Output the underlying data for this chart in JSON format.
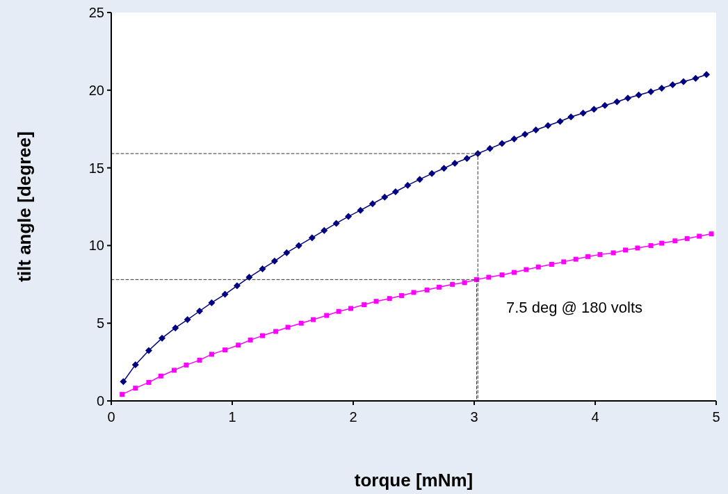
{
  "chart_data": {
    "type": "line",
    "xlabel": "torque [mNm]",
    "ylabel": "tilt angle [degree]",
    "xlim": [
      0,
      5
    ],
    "ylim": [
      0,
      25
    ],
    "xticks": [
      0,
      1,
      2,
      3,
      4,
      5
    ],
    "yticks": [
      0,
      5,
      10,
      15,
      20,
      25
    ],
    "annotations": [
      "7.5 deg @ 180 volts"
    ],
    "series": [
      {
        "color": "#000080",
        "marker": "diamond",
        "x": [
          0.1,
          0.2,
          0.31,
          0.42,
          0.53,
          0.63,
          0.73,
          0.83,
          0.94,
          1.04,
          1.14,
          1.25,
          1.35,
          1.45,
          1.55,
          1.66,
          1.76,
          1.86,
          1.96,
          2.06,
          2.16,
          2.26,
          2.35,
          2.45,
          2.55,
          2.65,
          2.75,
          2.84,
          2.94,
          3.03,
          3.13,
          3.23,
          3.33,
          3.42,
          3.51,
          3.61,
          3.71,
          3.8,
          3.9,
          3.99,
          4.08,
          4.18,
          4.27,
          4.36,
          4.46,
          4.55,
          4.64,
          4.73,
          4.83,
          4.92
        ],
        "values": [
          1.24,
          2.33,
          3.24,
          4.04,
          4.7,
          5.23,
          5.78,
          6.32,
          6.86,
          7.41,
          7.96,
          8.5,
          9.0,
          9.54,
          10.0,
          10.5,
          10.97,
          11.43,
          11.87,
          12.27,
          12.69,
          13.11,
          13.46,
          13.88,
          14.26,
          14.63,
          14.97,
          15.3,
          15.61,
          15.92,
          16.24,
          16.57,
          16.86,
          17.16,
          17.44,
          17.72,
          17.99,
          18.28,
          18.53,
          18.77,
          19.02,
          19.25,
          19.49,
          19.69,
          19.9,
          20.13,
          20.35,
          20.55,
          20.76,
          21.01
        ]
      },
      {
        "color": "#ff00ff",
        "marker": "square",
        "x": [
          0.09,
          0.2,
          0.31,
          0.41,
          0.52,
          0.62,
          0.73,
          0.83,
          0.94,
          1.05,
          1.15,
          1.25,
          1.36,
          1.46,
          1.57,
          1.67,
          1.78,
          1.88,
          1.98,
          2.09,
          2.19,
          2.3,
          2.4,
          2.5,
          2.61,
          2.71,
          2.82,
          2.92,
          3.02,
          3.12,
          3.23,
          3.33,
          3.43,
          3.53,
          3.64,
          3.74,
          3.84,
          3.94,
          4.04,
          4.15,
          4.25,
          4.35,
          4.46,
          4.55,
          4.66,
          4.76,
          4.86,
          4.96
        ],
        "values": [
          0.42,
          0.82,
          1.19,
          1.6,
          1.97,
          2.31,
          2.62,
          3.0,
          3.28,
          3.59,
          3.92,
          4.2,
          4.47,
          4.74,
          5.0,
          5.23,
          5.5,
          5.76,
          5.95,
          6.19,
          6.41,
          6.59,
          6.78,
          6.98,
          7.14,
          7.32,
          7.5,
          7.61,
          7.81,
          7.96,
          8.11,
          8.27,
          8.45,
          8.62,
          8.79,
          8.95,
          9.12,
          9.29,
          9.42,
          9.53,
          9.71,
          9.84,
          10.0,
          10.15,
          10.3,
          10.45,
          10.6,
          10.75
        ]
      },
      {
        "color": "#333333",
        "marker": "none",
        "line_style": "dashed",
        "x": [
          0,
          3.03,
          3.03
        ],
        "values": [
          15.92,
          15.92,
          0
        ]
      },
      {
        "color": "#333333",
        "marker": "none",
        "line_style": "dashed",
        "x": [
          0,
          3.02,
          3.02
        ],
        "values": [
          7.81,
          7.81,
          0
        ]
      }
    ]
  }
}
